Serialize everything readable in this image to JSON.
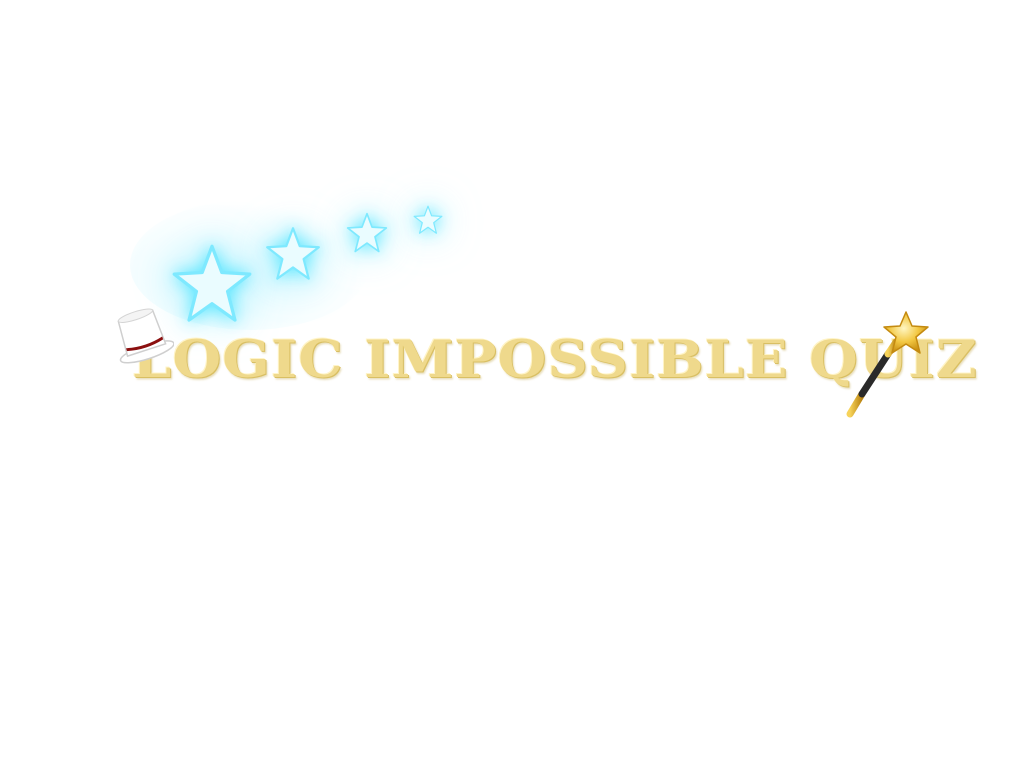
{
  "game": {
    "title": "LOGIC IMPOSSIBLE QUIZ"
  },
  "decorations": {
    "stars": [
      "star-icon",
      "star-icon",
      "star-icon",
      "star-icon"
    ],
    "hat": "magic-hat-icon",
    "wand": "magic-wand-icon"
  },
  "colors": {
    "title": "#efd98c",
    "star_glow": "#5ae6ff",
    "wand_star": "#e8b923",
    "background": "#ffffff"
  }
}
